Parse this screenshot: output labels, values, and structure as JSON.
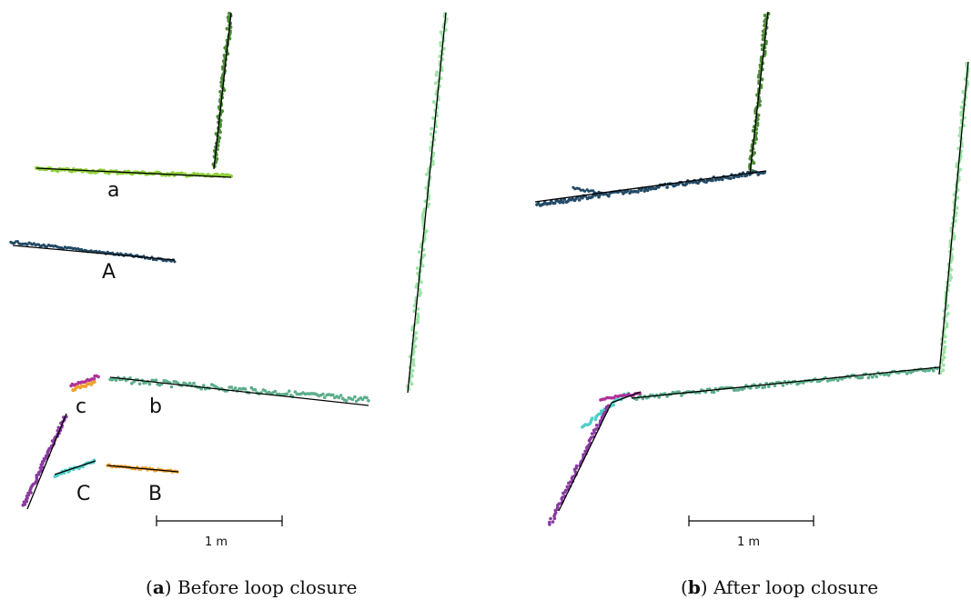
{
  "figure": {
    "panel_a": {
      "labels": {
        "a": "a",
        "A": "A",
        "b": "b",
        "B": "B",
        "c": "c",
        "C": "C"
      },
      "scale_label": "1 m",
      "caption_letter": "a",
      "caption_text": " Before loop closure"
    },
    "panel_b": {
      "scale_label": "1 m",
      "caption_letter": "b",
      "caption_text": " After loop closure"
    },
    "colors": {
      "light_green": "#9fe3a8",
      "dark_green": "#4d8a3a",
      "lime": "#8fd13a",
      "navy": "#234a66",
      "teal": "#5cae8c",
      "cyan": "#4fcfc9",
      "purple": "#8a3aa0",
      "magenta": "#b0309a",
      "orange": "#f0a030",
      "line": "#000000"
    }
  }
}
